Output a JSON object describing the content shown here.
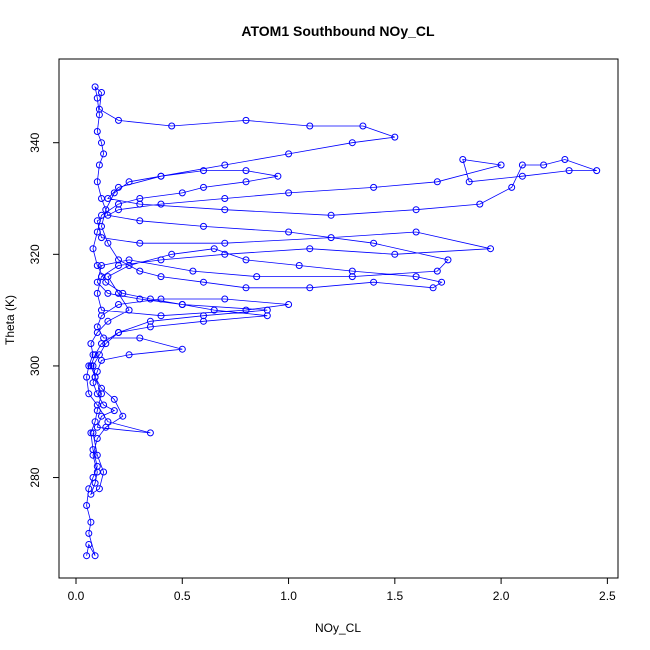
{
  "chart_data": {
    "type": "line",
    "title": "ATOM1 Southbound NOy_CL",
    "xlabel": "NOy_CL",
    "ylabel": "Theta (K)",
    "xlim": [
      -0.08,
      2.55
    ],
    "ylim": [
      262,
      355
    ],
    "x_ticks": [
      0.0,
      0.5,
      1.0,
      1.5,
      2.0,
      2.5
    ],
    "x_tick_labels": [
      "0.0",
      "0.5",
      "1.0",
      "1.5",
      "2.0",
      "2.5"
    ],
    "y_ticks": [
      280,
      300,
      320,
      340
    ],
    "y_tick_labels": [
      "280",
      "300",
      "320",
      "340"
    ],
    "grid": false,
    "marker": "open-circle",
    "series_color": "#0000ff",
    "series": [
      {
        "values": [
          [
            0.05,
            266
          ],
          [
            0.06,
            268
          ],
          [
            0.09,
            266
          ],
          [
            0.06,
            270
          ],
          [
            0.07,
            272
          ],
          [
            0.05,
            275
          ],
          [
            0.06,
            278
          ],
          [
            0.08,
            280
          ],
          [
            0.1,
            282
          ],
          [
            0.08,
            285
          ],
          [
            0.07,
            288
          ],
          [
            0.09,
            290
          ],
          [
            0.1,
            292
          ],
          [
            0.12,
            295
          ],
          [
            0.09,
            298
          ],
          [
            0.08,
            300
          ],
          [
            0.11,
            302
          ],
          [
            0.14,
            304
          ],
          [
            0.2,
            306
          ],
          [
            0.35,
            308
          ],
          [
            0.6,
            309
          ],
          [
            0.9,
            310
          ],
          [
            0.5,
            311
          ],
          [
            0.3,
            312
          ],
          [
            0.15,
            313
          ],
          [
            0.1,
            315
          ],
          [
            0.12,
            318
          ],
          [
            0.25,
            319
          ],
          [
            0.55,
            317
          ],
          [
            0.85,
            316
          ],
          [
            1.3,
            316
          ],
          [
            1.7,
            317
          ],
          [
            1.75,
            319
          ],
          [
            1.4,
            322
          ],
          [
            1.0,
            324
          ],
          [
            0.6,
            325
          ],
          [
            0.3,
            326
          ],
          [
            0.15,
            327
          ],
          [
            0.12,
            330
          ],
          [
            0.1,
            333
          ],
          [
            0.11,
            336
          ],
          [
            0.13,
            338
          ],
          [
            0.12,
            340
          ],
          [
            0.1,
            342
          ],
          [
            0.11,
            345
          ],
          [
            0.1,
            348
          ],
          [
            0.09,
            350
          ],
          [
            0.12,
            349
          ],
          [
            0.11,
            346
          ],
          [
            0.2,
            344
          ],
          [
            0.45,
            343
          ],
          [
            0.8,
            344
          ],
          [
            1.1,
            343
          ],
          [
            1.35,
            343
          ],
          [
            1.5,
            341
          ],
          [
            1.3,
            340
          ],
          [
            1.0,
            338
          ],
          [
            0.7,
            336
          ],
          [
            0.4,
            334
          ],
          [
            0.2,
            332
          ],
          [
            0.15,
            330
          ],
          [
            0.3,
            329
          ],
          [
            0.7,
            328
          ],
          [
            1.2,
            327
          ],
          [
            1.6,
            328
          ],
          [
            1.9,
            329
          ],
          [
            2.05,
            332
          ],
          [
            2.1,
            336
          ],
          [
            2.2,
            336
          ],
          [
            2.3,
            337
          ],
          [
            2.45,
            335
          ],
          [
            2.32,
            335
          ],
          [
            2.1,
            334
          ],
          [
            1.85,
            333
          ],
          [
            1.82,
            337
          ],
          [
            2.0,
            336
          ],
          [
            1.7,
            333
          ],
          [
            1.4,
            332
          ],
          [
            1.0,
            331
          ],
          [
            0.7,
            330
          ],
          [
            0.4,
            329
          ],
          [
            0.2,
            328
          ],
          [
            0.1,
            326
          ],
          [
            0.12,
            323
          ],
          [
            0.3,
            322
          ],
          [
            0.7,
            322
          ],
          [
            1.2,
            323
          ],
          [
            1.6,
            324
          ],
          [
            1.95,
            321
          ],
          [
            1.5,
            320
          ],
          [
            1.1,
            321
          ],
          [
            0.7,
            320
          ],
          [
            0.4,
            319
          ],
          [
            0.2,
            318
          ],
          [
            0.12,
            316
          ],
          [
            0.1,
            313
          ],
          [
            0.12,
            310
          ],
          [
            0.4,
            309
          ],
          [
            0.8,
            310
          ],
          [
            1.0,
            311
          ],
          [
            0.7,
            312
          ],
          [
            0.4,
            312
          ],
          [
            0.2,
            311
          ],
          [
            0.12,
            309
          ],
          [
            0.1,
            307
          ],
          [
            0.13,
            305
          ],
          [
            0.3,
            305
          ],
          [
            0.5,
            303
          ],
          [
            0.25,
            302
          ],
          [
            0.12,
            301
          ],
          [
            0.1,
            299
          ],
          [
            0.08,
            297
          ],
          [
            0.1,
            295
          ],
          [
            0.13,
            293
          ],
          [
            0.18,
            292
          ],
          [
            0.12,
            291
          ],
          [
            0.1,
            289
          ],
          [
            0.35,
            288
          ],
          [
            0.15,
            290
          ],
          [
            0.1,
            293
          ],
          [
            0.06,
            295
          ],
          [
            0.05,
            298
          ],
          [
            0.06,
            300
          ],
          [
            0.08,
            302
          ],
          [
            0.07,
            304
          ],
          [
            0.1,
            306
          ],
          [
            0.15,
            308
          ],
          [
            0.25,
            310
          ],
          [
            0.2,
            313
          ],
          [
            0.15,
            316
          ],
          [
            0.25,
            318
          ],
          [
            0.45,
            320
          ],
          [
            0.65,
            321
          ],
          [
            0.8,
            319
          ],
          [
            1.05,
            318
          ],
          [
            1.3,
            317
          ],
          [
            1.6,
            316
          ],
          [
            1.72,
            315
          ],
          [
            1.68,
            314
          ],
          [
            1.4,
            315
          ],
          [
            1.1,
            314
          ],
          [
            0.8,
            314
          ],
          [
            0.6,
            315
          ],
          [
            0.4,
            316
          ],
          [
            0.3,
            317
          ],
          [
            0.2,
            319
          ],
          [
            0.15,
            322
          ],
          [
            0.12,
            325
          ],
          [
            0.14,
            328
          ],
          [
            0.18,
            331
          ],
          [
            0.25,
            333
          ],
          [
            0.4,
            334
          ],
          [
            0.6,
            335
          ],
          [
            0.8,
            335
          ],
          [
            0.95,
            334
          ],
          [
            0.8,
            333
          ],
          [
            0.6,
            332
          ],
          [
            0.5,
            331
          ],
          [
            0.3,
            330
          ],
          [
            0.2,
            329
          ],
          [
            0.12,
            327
          ],
          [
            0.1,
            324
          ],
          [
            0.08,
            321
          ],
          [
            0.1,
            318
          ],
          [
            0.14,
            315
          ],
          [
            0.22,
            313
          ],
          [
            0.35,
            312
          ],
          [
            0.5,
            311
          ],
          [
            0.65,
            310
          ],
          [
            0.9,
            309
          ],
          [
            0.6,
            308
          ],
          [
            0.35,
            307
          ],
          [
            0.2,
            306
          ],
          [
            0.12,
            304
          ],
          [
            0.09,
            302
          ],
          [
            0.07,
            300
          ],
          [
            0.09,
            298
          ],
          [
            0.12,
            296
          ],
          [
            0.18,
            294
          ],
          [
            0.22,
            291
          ],
          [
            0.14,
            289
          ],
          [
            0.1,
            287
          ],
          [
            0.08,
            284
          ],
          [
            0.1,
            281
          ],
          [
            0.09,
            279
          ],
          [
            0.07,
            277
          ],
          [
            0.11,
            278
          ],
          [
            0.13,
            281
          ],
          [
            0.1,
            284
          ],
          [
            0.08,
            288
          ]
        ]
      }
    ]
  }
}
